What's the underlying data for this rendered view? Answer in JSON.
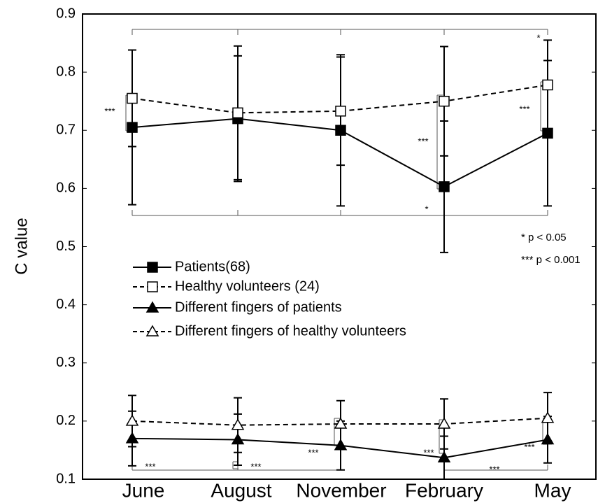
{
  "chart_data": {
    "type": "line",
    "ylabel": "C value",
    "categories": [
      "June",
      "August",
      "November",
      "February",
      "May"
    ],
    "ylim": [
      0.1,
      0.9
    ],
    "yticks": [
      0.1,
      0.2,
      0.3,
      0.4,
      0.5,
      0.6,
      0.7,
      0.8,
      0.9
    ],
    "series": [
      {
        "name": "Patients(68)",
        "color": "#000000",
        "dashed": false,
        "marker": "square",
        "filled": true,
        "values": [
          0.705,
          0.72,
          0.7,
          0.603,
          0.695
        ],
        "errors": [
          0.133,
          0.108,
          0.13,
          0.113,
          0.125
        ]
      },
      {
        "name": "Healthy volunteers (24)",
        "color": "#000000",
        "dashed": true,
        "marker": "square",
        "filled": false,
        "values": [
          0.755,
          0.73,
          0.733,
          0.75,
          0.778
        ],
        "errors": [
          0.083,
          0.115,
          0.093,
          0.094,
          0.077
        ]
      },
      {
        "name": "Different fingers of patients",
        "color": "#000000",
        "dashed": false,
        "marker": "triangle",
        "filled": true,
        "values": [
          0.17,
          0.168,
          0.158,
          0.137,
          0.168
        ],
        "errors": [
          0.047,
          0.044,
          0.042,
          0.037,
          0.04
        ]
      },
      {
        "name": "Different fingers of healthy volunteers",
        "color": "#000000",
        "dashed": true,
        "marker": "triangle",
        "filled": false,
        "values": [
          0.2,
          0.193,
          0.195,
          0.195,
          0.205
        ],
        "errors": [
          0.044,
          0.047,
          0.04,
          0.043,
          0.044
        ]
      }
    ],
    "annotations": [
      "***",
      "***",
      "*",
      "***",
      "*",
      "* p < 0.05",
      "*** p < 0.001",
      "***",
      "***",
      "***",
      "***",
      "***",
      "***"
    ]
  }
}
